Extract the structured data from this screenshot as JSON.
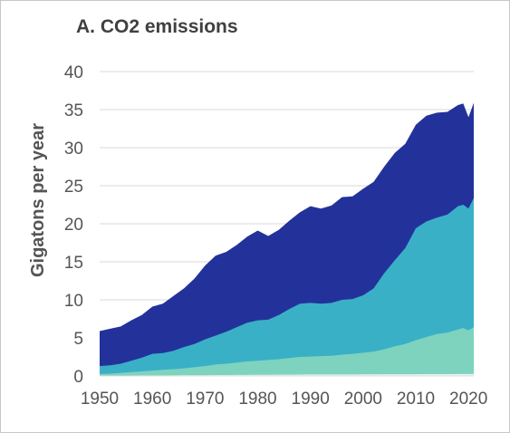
{
  "chart_data": {
    "type": "area",
    "title": "A. CO2 emissions",
    "xlabel": "",
    "ylabel": "Gigatons per year",
    "xlim": [
      1950,
      2021
    ],
    "ylim": [
      0,
      40
    ],
    "yticks": [
      0,
      5,
      10,
      15,
      20,
      25,
      30,
      35,
      40
    ],
    "xticks": [
      1950,
      1960,
      1970,
      1980,
      1990,
      2000,
      2010,
      2020
    ],
    "grid": "horizontal",
    "legend": "none",
    "stacked": false,
    "x": [
      1950,
      1952,
      1954,
      1956,
      1958,
      1960,
      1962,
      1964,
      1966,
      1968,
      1970,
      1972,
      1974,
      1976,
      1978,
      1980,
      1982,
      1984,
      1986,
      1988,
      1990,
      1992,
      1994,
      1996,
      1998,
      2000,
      2002,
      2004,
      2006,
      2008,
      2010,
      2012,
      2014,
      2016,
      2018,
      2019,
      2020,
      2021
    ],
    "series": [
      {
        "color": "#23329A",
        "values": [
          5.9,
          6.2,
          6.5,
          7.3,
          8.0,
          9.1,
          9.5,
          10.5,
          11.5,
          12.8,
          14.5,
          15.8,
          16.3,
          17.2,
          18.3,
          19.1,
          18.4,
          19.2,
          20.4,
          21.5,
          22.3,
          22.0,
          22.4,
          23.5,
          23.6,
          24.6,
          25.5,
          27.5,
          29.3,
          30.5,
          33.0,
          34.2,
          34.6,
          34.7,
          35.6,
          35.8,
          34.0,
          35.9
        ]
      },
      {
        "color": "#3AB0C7",
        "values": [
          1.3,
          1.4,
          1.6,
          2.0,
          2.4,
          2.9,
          3.0,
          3.3,
          3.8,
          4.2,
          4.8,
          5.3,
          5.8,
          6.4,
          7.0,
          7.3,
          7.4,
          8.0,
          8.8,
          9.5,
          9.6,
          9.5,
          9.6,
          10.0,
          10.1,
          10.6,
          11.5,
          13.5,
          15.2,
          16.8,
          19.4,
          20.3,
          20.8,
          21.2,
          22.3,
          22.5,
          22.0,
          23.4
        ]
      },
      {
        "color": "#7DD3BE",
        "values": [
          0.25,
          0.3,
          0.4,
          0.5,
          0.6,
          0.7,
          0.8,
          0.9,
          1.0,
          1.15,
          1.3,
          1.5,
          1.6,
          1.75,
          1.9,
          2.0,
          2.1,
          2.2,
          2.35,
          2.5,
          2.55,
          2.6,
          2.65,
          2.8,
          2.9,
          3.05,
          3.2,
          3.5,
          3.9,
          4.2,
          4.7,
          5.1,
          5.5,
          5.7,
          6.1,
          6.3,
          6.0,
          6.4
        ]
      },
      {
        "color": "#E6F5EE",
        "values": [
          0.05,
          0.05,
          0.05,
          0.06,
          0.07,
          0.07,
          0.08,
          0.09,
          0.1,
          0.1,
          0.11,
          0.12,
          0.12,
          0.13,
          0.14,
          0.15,
          0.15,
          0.16,
          0.17,
          0.18,
          0.19,
          0.19,
          0.2,
          0.2,
          0.2,
          0.21,
          0.21,
          0.22,
          0.22,
          0.23,
          0.23,
          0.24,
          0.24,
          0.24,
          0.25,
          0.25,
          0.25,
          0.25
        ]
      }
    ]
  }
}
